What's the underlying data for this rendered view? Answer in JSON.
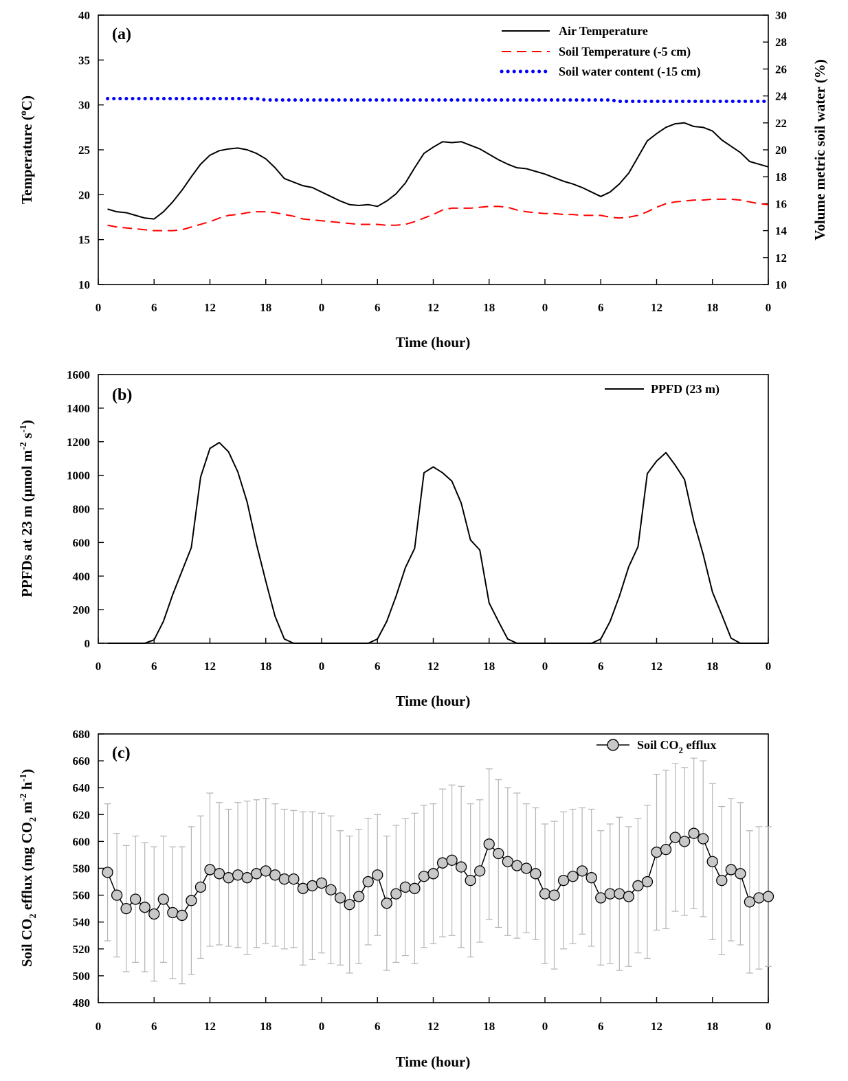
{
  "x_axis": {
    "label": "Time (hour)",
    "tick_labels": [
      "0",
      "6",
      "12",
      "18",
      "0",
      "6",
      "12",
      "18",
      "0",
      "6",
      "12",
      "18",
      "0"
    ],
    "range_hours": [
      0,
      72
    ]
  },
  "colors": {
    "air": "#000000",
    "soil_temp": "#ff0000",
    "soil_water": "#0000ff",
    "ppfd": "#000000",
    "marker_fill": "#c8c8c8",
    "error_bar": "#b4b4b4"
  },
  "chart_data": [
    {
      "type": "line",
      "panel_label": "(a)",
      "xlabel": "Time (hour)",
      "ylabel": "Temperature (°C)",
      "ylabel_parts": [
        "Temperature (",
        "o",
        "C)"
      ],
      "y2label": "Volume metric soil water (%)",
      "ylim": [
        10,
        40
      ],
      "y2lim": [
        10,
        30
      ],
      "yticks": [
        10,
        15,
        20,
        25,
        30,
        35,
        40
      ],
      "y2ticks": [
        10,
        12,
        14,
        16,
        18,
        20,
        22,
        24,
        26,
        28,
        30
      ],
      "x": [
        1,
        2,
        3,
        4,
        5,
        6,
        7,
        8,
        9,
        10,
        11,
        12,
        13,
        14,
        15,
        16,
        17,
        18,
        19,
        20,
        21,
        22,
        23,
        24,
        25,
        26,
        27,
        28,
        29,
        30,
        31,
        32,
        33,
        34,
        35,
        36,
        37,
        38,
        39,
        40,
        41,
        42,
        43,
        44,
        45,
        46,
        47,
        48,
        49,
        50,
        51,
        52,
        53,
        54,
        55,
        56,
        57,
        58,
        59,
        60,
        61,
        62,
        63,
        64,
        65,
        66,
        67,
        68,
        69,
        70,
        71,
        72
      ],
      "series": [
        {
          "name": "Air Temperature",
          "axis": "left",
          "style": "solid",
          "values": [
            18.4,
            18.1,
            18.0,
            17.7,
            17.4,
            17.3,
            18.1,
            19.2,
            20.5,
            22.0,
            23.4,
            24.4,
            24.9,
            25.1,
            25.2,
            25.0,
            24.6,
            24.0,
            23.0,
            21.8,
            21.4,
            21.0,
            20.8,
            20.3,
            19.8,
            19.3,
            18.9,
            18.8,
            18.9,
            18.7,
            19.3,
            20.1,
            21.3,
            23.0,
            24.6,
            25.3,
            25.9,
            25.8,
            25.9,
            25.5,
            25.1,
            24.5,
            23.9,
            23.4,
            23.0,
            22.9,
            22.6,
            22.3,
            21.9,
            21.5,
            21.2,
            20.8,
            20.3,
            19.8,
            20.3,
            21.2,
            22.4,
            24.2,
            26.0,
            26.8,
            27.5,
            27.9,
            28.0,
            27.6,
            27.5,
            27.1,
            26.1,
            25.4,
            24.7,
            23.7,
            23.4,
            23.1
          ]
        },
        {
          "name": "Soil Temperature (-5 cm)",
          "axis": "left",
          "style": "dashed",
          "values": [
            16.6,
            16.4,
            16.3,
            16.2,
            16.1,
            16.0,
            16.0,
            16.0,
            16.1,
            16.4,
            16.7,
            17.0,
            17.4,
            17.7,
            17.8,
            18.0,
            18.1,
            18.1,
            18.0,
            17.8,
            17.6,
            17.3,
            17.2,
            17.1,
            17.0,
            16.9,
            16.8,
            16.7,
            16.7,
            16.7,
            16.6,
            16.6,
            16.7,
            17.0,
            17.4,
            17.8,
            18.3,
            18.5,
            18.5,
            18.5,
            18.6,
            18.7,
            18.7,
            18.6,
            18.3,
            18.1,
            18.0,
            17.9,
            17.9,
            17.8,
            17.8,
            17.7,
            17.7,
            17.7,
            17.5,
            17.4,
            17.5,
            17.7,
            18.1,
            18.6,
            19.0,
            19.2,
            19.3,
            19.4,
            19.4,
            19.5,
            19.5,
            19.5,
            19.4,
            19.2,
            19.0,
            18.9
          ]
        },
        {
          "name": "Soil water content (-15 cm)",
          "axis": "right",
          "style": "dotted",
          "values": [
            23.8,
            23.8,
            23.8,
            23.8,
            23.8,
            23.8,
            23.8,
            23.8,
            23.8,
            23.8,
            23.8,
            23.8,
            23.8,
            23.8,
            23.8,
            23.8,
            23.8,
            23.7,
            23.7,
            23.7,
            23.7,
            23.7,
            23.7,
            23.7,
            23.7,
            23.7,
            23.7,
            23.7,
            23.7,
            23.7,
            23.7,
            23.7,
            23.7,
            23.7,
            23.7,
            23.7,
            23.7,
            23.7,
            23.7,
            23.7,
            23.7,
            23.7,
            23.7,
            23.7,
            23.7,
            23.7,
            23.7,
            23.7,
            23.7,
            23.7,
            23.7,
            23.7,
            23.7,
            23.7,
            23.7,
            23.6,
            23.6,
            23.6,
            23.6,
            23.6,
            23.6,
            23.6,
            23.6,
            23.6,
            23.6,
            23.6,
            23.6,
            23.6,
            23.6,
            23.6,
            23.6,
            23.6
          ]
        }
      ],
      "legend_position": "top-right"
    },
    {
      "type": "line",
      "panel_label": "(b)",
      "xlabel": "Time (hour)",
      "ylabel": "PPFDs at 23 m (μmol m-2 s-1)",
      "ylabel_parts": [
        "PPFDs at 23 m (μmol m",
        "-2",
        " s",
        "-1",
        ")"
      ],
      "ylim": [
        0,
        1600
      ],
      "yticks": [
        0,
        200,
        400,
        600,
        800,
        1000,
        1200,
        1400,
        1600
      ],
      "x": [
        1,
        2,
        3,
        4,
        5,
        6,
        7,
        8,
        9,
        10,
        11,
        12,
        13,
        14,
        15,
        16,
        17,
        18,
        19,
        20,
        21,
        22,
        23,
        24,
        25,
        26,
        27,
        28,
        29,
        30,
        31,
        32,
        33,
        34,
        35,
        36,
        37,
        38,
        39,
        40,
        41,
        42,
        43,
        44,
        45,
        46,
        47,
        48,
        49,
        50,
        51,
        52,
        53,
        54,
        55,
        56,
        57,
        58,
        59,
        60,
        61,
        62,
        63,
        64,
        65,
        66,
        67,
        68,
        69,
        70,
        71,
        72
      ],
      "series": [
        {
          "name": "PPFD (23 m)",
          "axis": "left",
          "style": "solid",
          "values": [
            0,
            0,
            0,
            0,
            0,
            20,
            130,
            290,
            430,
            570,
            990,
            1160,
            1195,
            1140,
            1020,
            840,
            590,
            370,
            160,
            25,
            0,
            0,
            0,
            0,
            0,
            0,
            0,
            0,
            0,
            25,
            130,
            280,
            450,
            565,
            1015,
            1050,
            1015,
            965,
            835,
            615,
            555,
            240,
            130,
            25,
            0,
            0,
            0,
            0,
            0,
            0,
            0,
            0,
            0,
            25,
            130,
            280,
            455,
            575,
            1010,
            1085,
            1135,
            1060,
            975,
            725,
            530,
            305,
            170,
            30,
            0,
            0,
            0,
            0
          ]
        }
      ],
      "legend_position": "top-right"
    },
    {
      "type": "scatter",
      "panel_label": "(c)",
      "xlabel": "Time (hour)",
      "ylabel": "Soil CO2 efflux (mg CO2 m-2 h-1)",
      "ylabel_parts": [
        "Soil CO",
        "2",
        " efflux (mg CO",
        "2",
        " m",
        "-2",
        " h",
        "-1",
        ")"
      ],
      "ylim": [
        480,
        680
      ],
      "yticks": [
        480,
        500,
        520,
        540,
        560,
        580,
        600,
        620,
        640,
        660,
        680
      ],
      "x": [
        1,
        2,
        3,
        4,
        5,
        6,
        7,
        8,
        9,
        10,
        11,
        12,
        13,
        14,
        15,
        16,
        17,
        18,
        19,
        20,
        21,
        22,
        23,
        24,
        25,
        26,
        27,
        28,
        29,
        30,
        31,
        32,
        33,
        34,
        35,
        36,
        37,
        38,
        39,
        40,
        41,
        42,
        43,
        44,
        45,
        46,
        47,
        48,
        49,
        50,
        51,
        52,
        53,
        54,
        55,
        56,
        57,
        58,
        59,
        60,
        61,
        62,
        63,
        64,
        65,
        66,
        67,
        68,
        69,
        70,
        71,
        72
      ],
      "series": [
        {
          "name": "Soil CO2 efflux",
          "legend_parts": [
            "Soil CO",
            "2",
            " efflux"
          ],
          "style": "line-marker",
          "values": [
            577,
            560,
            550,
            557,
            551,
            546,
            557,
            547,
            545,
            556,
            566,
            579,
            576,
            573,
            575,
            573,
            576,
            578,
            575,
            572,
            572,
            565,
            567,
            569,
            564,
            558,
            553,
            559,
            570,
            575,
            554,
            561,
            566,
            565,
            574,
            576,
            584,
            586,
            581,
            571,
            578,
            598,
            591,
            585,
            582,
            580,
            576,
            561,
            560,
            571,
            574,
            578,
            573,
            558,
            561,
            561,
            559,
            567,
            570,
            592,
            594,
            603,
            600,
            606,
            602,
            585,
            571,
            579,
            576,
            555,
            558,
            559
          ],
          "error_upper": [
            628,
            606,
            597,
            604,
            599,
            596,
            604,
            596,
            596,
            611,
            619,
            636,
            629,
            624,
            629,
            630,
            631,
            632,
            628,
            624,
            623,
            622,
            622,
            621,
            619,
            608,
            604,
            609,
            617,
            620,
            604,
            612,
            617,
            621,
            627,
            628,
            639,
            642,
            641,
            628,
            631,
            654,
            646,
            640,
            636,
            628,
            625,
            613,
            615,
            622,
            624,
            625,
            624,
            608,
            613,
            618,
            611,
            617,
            627,
            650,
            653,
            658,
            655,
            662,
            660,
            643,
            626,
            632,
            629,
            608,
            611,
            611
          ],
          "error_lower": [
            526,
            514,
            503,
            510,
            503,
            496,
            510,
            498,
            494,
            501,
            513,
            522,
            523,
            522,
            521,
            516,
            521,
            524,
            522,
            520,
            521,
            508,
            512,
            517,
            509,
            508,
            502,
            509,
            523,
            530,
            504,
            510,
            515,
            509,
            521,
            524,
            529,
            530,
            521,
            514,
            525,
            542,
            536,
            530,
            528,
            532,
            527,
            509,
            505,
            520,
            524,
            531,
            522,
            508,
            509,
            504,
            507,
            517,
            513,
            534,
            535,
            548,
            545,
            550,
            544,
            527,
            516,
            526,
            523,
            502,
            505,
            507
          ]
        }
      ],
      "legend_position": "top-right"
    }
  ]
}
